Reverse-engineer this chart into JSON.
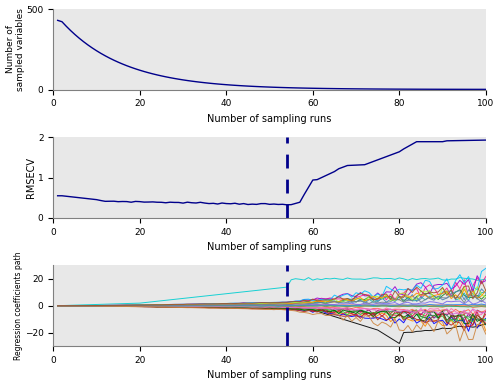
{
  "dashed_line_x": 54,
  "subplot1": {
    "ylabel": "Number of\nsampled variables",
    "xlabel": "Number of sampling runs",
    "ylim": [
      0,
      500
    ],
    "yticks": [
      0,
      500
    ],
    "xlim": [
      0,
      100
    ],
    "xticks": [
      0,
      20,
      40,
      60,
      80,
      100
    ],
    "line_color": "#00008B"
  },
  "subplot2": {
    "ylabel": "RMSECV",
    "xlabel": "Number of sampling runs",
    "ylim": [
      0,
      2
    ],
    "yticks": [
      0,
      1,
      2
    ],
    "xlim": [
      0,
      100
    ],
    "xticks": [
      0,
      20,
      40,
      60,
      80,
      100
    ],
    "line_color": "#00008B",
    "dashed_line_color": "#00008B"
  },
  "subplot3": {
    "ylabel": "Regression coefficients path",
    "xlabel": "Number of sampling runs",
    "ylim": [
      -30,
      30
    ],
    "yticks": [
      -20,
      0,
      20
    ],
    "xlim": [
      0,
      100
    ],
    "xticks": [
      0,
      20,
      40,
      60,
      80,
      100
    ],
    "dashed_line_color": "#00008B",
    "num_lines": 30
  },
  "background_color": "#ffffff",
  "axes_facecolor": "#e8e8e8",
  "colors_list": [
    "#00CED1",
    "#000000",
    "#FF4500",
    "#FF8C00",
    "#228B22",
    "#800080",
    "#0000FF",
    "#FF1493",
    "#8B4513",
    "#2E8B57",
    "#DC143C",
    "#20B2AA",
    "#FF6347",
    "#4682B4",
    "#D2691E",
    "#9400D3",
    "#32CD32",
    "#FF69B4",
    "#1E90FF",
    "#006400",
    "#B22222",
    "#00BFFF",
    "#ADFF2F",
    "#DA70D6",
    "#FF8C00",
    "#7B68EE",
    "#3CB371",
    "#CD853F",
    "#708090",
    "#A0522D"
  ]
}
